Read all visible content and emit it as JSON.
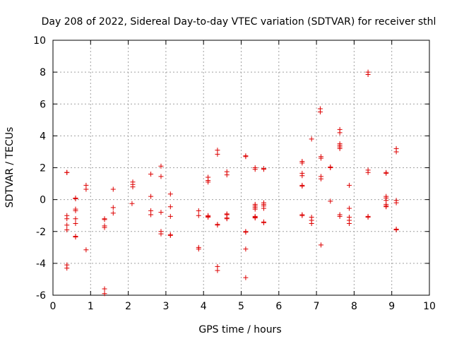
{
  "chart_data": {
    "type": "scatter",
    "title": "Day 208 of 2022, Sidereal Day-to-day VTEC variation (SDTVAR) for receiver sthl",
    "xlabel": "GPS time / hours",
    "ylabel": "SDTVAR / TECUs",
    "xlim": [
      0,
      10
    ],
    "ylim": [
      -6,
      10
    ],
    "xticks": [
      "0",
      "1",
      "2",
      "3",
      "4",
      "5",
      "6",
      "7",
      "8",
      "9",
      "10"
    ],
    "yticks": [
      "-6",
      "-4",
      "-2",
      "0",
      "2",
      "4",
      "6",
      "8",
      "10"
    ],
    "grid": true,
    "marker": "+",
    "color": "#dd0000",
    "x": [
      0.37,
      0.37,
      0.37,
      0.37,
      0.37,
      0.37,
      0.37,
      0.37,
      0.6,
      0.6,
      0.6,
      0.6,
      0.6,
      0.6,
      0.6,
      0.6,
      0.6,
      0.88,
      0.88,
      0.88,
      1.37,
      1.37,
      1.37,
      1.37,
      1.37,
      1.37,
      1.6,
      1.6,
      1.6,
      2.1,
      2.12,
      2.12,
      2.12,
      2.6,
      2.6,
      2.6,
      2.6,
      2.87,
      2.87,
      2.87,
      2.87,
      2.87,
      3.12,
      3.12,
      3.12,
      3.12,
      3.12,
      3.87,
      3.87,
      3.87,
      3.87,
      4.12,
      4.12,
      4.12,
      4.12,
      4.12,
      4.12,
      4.37,
      4.37,
      4.37,
      4.37,
      4.37,
      4.37,
      4.62,
      4.62,
      4.62,
      4.62,
      4.62,
      4.62,
      5.12,
      5.12,
      5.12,
      5.12,
      5.12,
      5.12,
      5.37,
      5.37,
      5.37,
      5.37,
      5.37,
      5.37,
      5.37,
      5.37,
      5.37,
      5.6,
      5.6,
      5.6,
      5.6,
      5.6,
      5.6,
      5.6,
      5.6,
      6.62,
      6.62,
      6.62,
      6.62,
      6.62,
      6.62,
      6.62,
      6.62,
      6.87,
      6.87,
      6.87,
      6.87,
      7.1,
      7.1,
      7.12,
      7.12,
      7.12,
      7.12,
      7.12,
      7.37,
      7.37,
      7.37,
      7.62,
      7.62,
      7.62,
      7.62,
      7.62,
      7.62,
      7.62,
      7.62,
      7.87,
      7.87,
      7.87,
      7.87,
      7.87,
      8.37,
      8.37,
      8.37,
      8.37,
      8.37,
      8.37,
      8.85,
      8.85,
      8.85,
      8.85,
      8.85,
      8.85,
      8.85,
      8.85,
      9.12,
      9.12,
      9.12,
      9.12,
      9.12,
      9.12
    ],
    "y": [
      1.7,
      1.7,
      -1,
      -1.2,
      -1.6,
      -1.9,
      -4.1,
      -4.3,
      0.05,
      0.1,
      -0.6,
      -0.7,
      -1.2,
      -1.5,
      -2.3,
      -2.35,
      0.05,
      0.9,
      0.65,
      -3.15,
      -1.2,
      -1.25,
      -1.65,
      -1.75,
      -5.6,
      -5.9,
      0.65,
      -0.5,
      -0.85,
      -0.25,
      0.8,
      0.95,
      1.1,
      1.6,
      0.2,
      -0.7,
      -0.95,
      2.1,
      1.45,
      -0.8,
      -2,
      -2.15,
      0.35,
      -0.45,
      -1.05,
      -2.25,
      -2.2,
      -0.7,
      -1,
      -3,
      -3.1,
      1.4,
      1.2,
      1.1,
      -1,
      -1.05,
      -1.1,
      3.1,
      2.85,
      -1.55,
      -1.6,
      -4.2,
      -4.45,
      1.75,
      1.55,
      -0.9,
      -0.95,
      -1.15,
      -1.2,
      2.75,
      2.7,
      -2,
      -2.05,
      -3.1,
      -4.9,
      2,
      1.9,
      -0.3,
      -0.4,
      -0.5,
      -0.6,
      -1.05,
      -1.1,
      -1.15,
      1.95,
      1.9,
      -0.2,
      -0.3,
      -0.4,
      -0.55,
      -1.4,
      -1.45,
      2.4,
      2.3,
      1.65,
      1.5,
      0.9,
      0.85,
      -0.95,
      -1,
      3.8,
      -1.1,
      -1.3,
      -1.5,
      5.7,
      5.5,
      2.7,
      2.6,
      1.45,
      1.3,
      -2.85,
      2,
      2.05,
      -0.1,
      4.4,
      4.2,
      3.5,
      3.4,
      3.3,
      3.2,
      -0.95,
      -1.05,
      0.9,
      -0.55,
      -1.1,
      -1.3,
      -1.5,
      8,
      7.85,
      1.85,
      1.7,
      -1.05,
      -1.1,
      1.7,
      1.65,
      0.2,
      0.1,
      -0.05,
      -0.3,
      -0.4,
      -0.45,
      3.2,
      3,
      -0.05,
      -0.2,
      -1.85,
      -1.9
    ]
  }
}
